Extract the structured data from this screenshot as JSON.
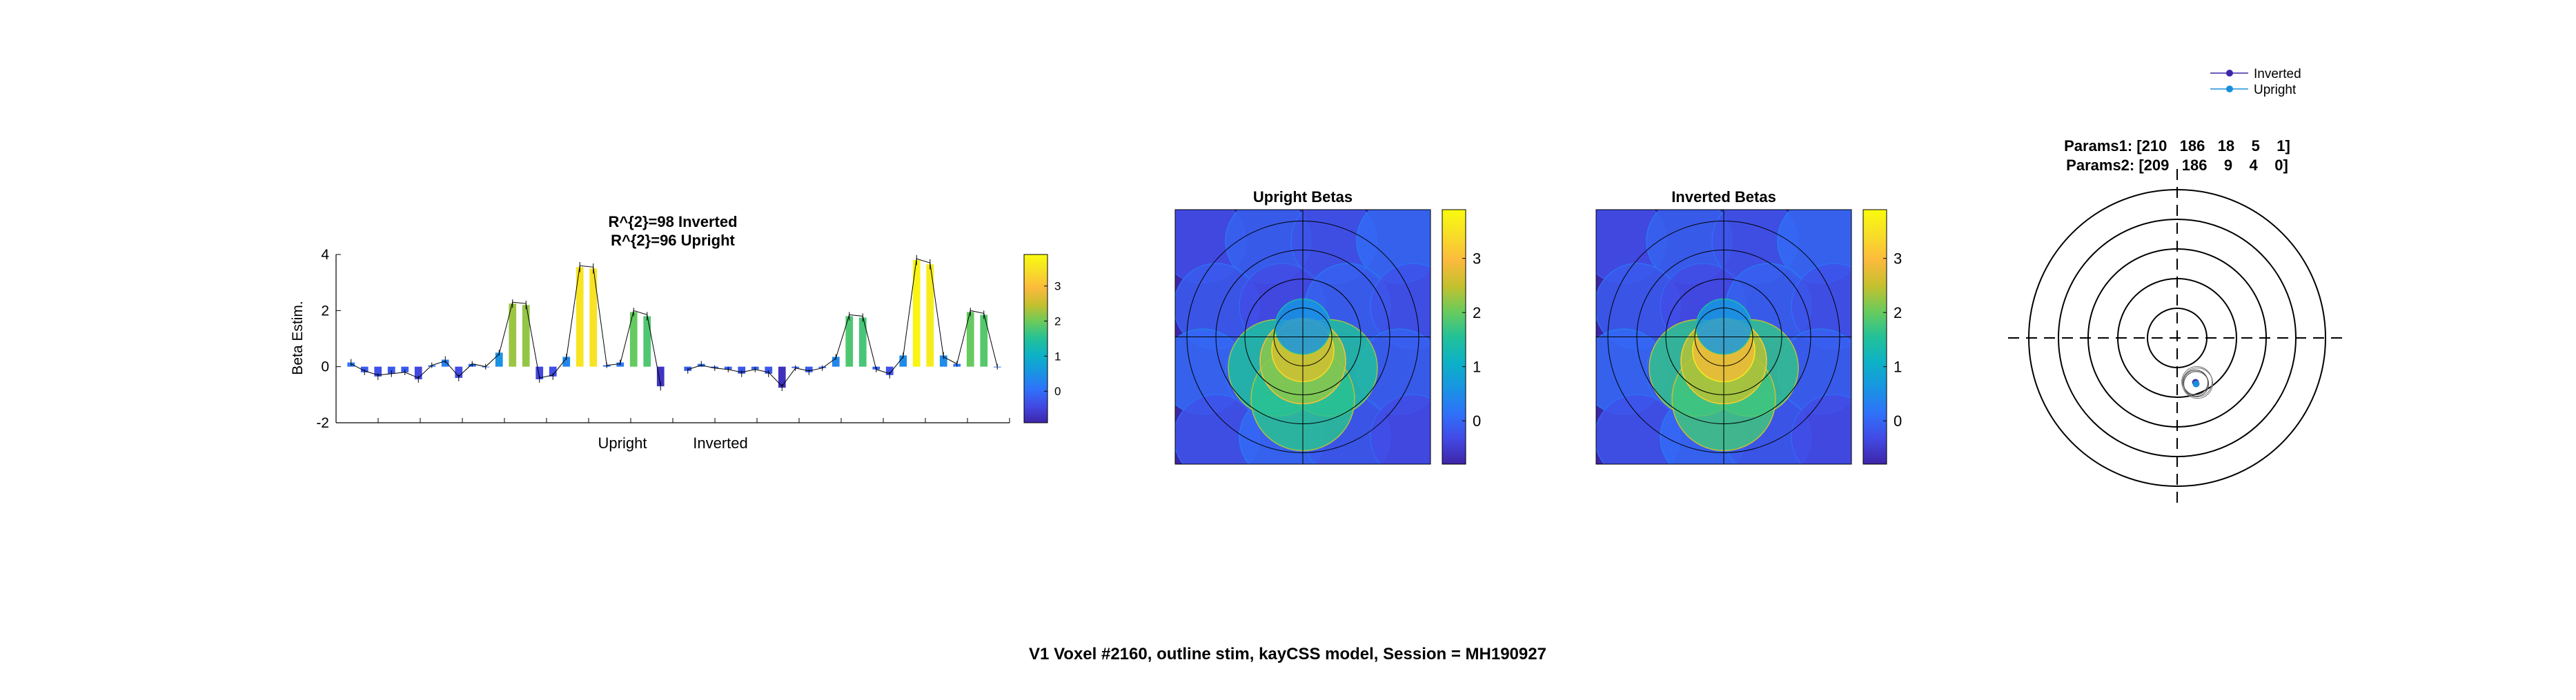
{
  "suptitle": "V1 Voxel #2160, outline stim, kayCSS model, Session = MH190927",
  "colors": {
    "colormap": [
      "#3e26a8",
      "#4249e4",
      "#2f72f9",
      "#1895e2",
      "#0db1c6",
      "#23c198",
      "#69cb5c",
      "#c4c02e",
      "#fbba3d",
      "#f8dd28",
      "#f9fb0e"
    ],
    "black": "#000000",
    "inverted_marker": "#3e26a8",
    "upright_marker": "#1a8fd8",
    "curve_line": "#000000"
  },
  "chart_data": [
    {
      "type": "bar",
      "title_lines": [
        "R^{2}=98 Inverted",
        "R^{2}=96 Upright"
      ],
      "ylabel": "Beta Estim.",
      "xlabel": "",
      "ylim": [
        -2,
        4
      ],
      "yticks": [
        -2,
        0,
        2,
        4
      ],
      "group_labels": [
        "Upright",
        "Inverted"
      ],
      "colorbar_ticks": [
        0,
        1,
        2,
        3
      ],
      "clim": [
        -0.9,
        3.9
      ],
      "groups": [
        {
          "name": "Upright",
          "values": [
            0.15,
            -0.2,
            -0.35,
            -0.25,
            -0.2,
            -0.45,
            0.05,
            0.25,
            -0.4,
            0.1,
            0.0,
            0.5,
            2.25,
            2.2,
            -0.45,
            -0.35,
            0.35,
            3.55,
            3.5,
            0.05,
            0.15,
            1.95,
            1.8,
            -0.7
          ],
          "errors": [
            0.12,
            0.1,
            0.12,
            0.12,
            0.1,
            0.12,
            0.1,
            0.12,
            0.12,
            0.1,
            0.1,
            0.1,
            0.15,
            0.15,
            0.12,
            0.12,
            0.1,
            0.18,
            0.18,
            0.1,
            0.1,
            0.15,
            0.15,
            0.15
          ],
          "fit": [
            0.1,
            -0.15,
            -0.3,
            -0.25,
            -0.2,
            -0.4,
            0.05,
            0.2,
            -0.35,
            0.1,
            0.0,
            0.45,
            2.3,
            2.25,
            -0.4,
            -0.3,
            0.3,
            3.6,
            3.55,
            0.05,
            0.1,
            2.0,
            1.85,
            -0.65
          ]
        },
        {
          "name": "Inverted",
          "values": [
            -0.15,
            0.1,
            -0.05,
            -0.1,
            -0.25,
            -0.1,
            -0.25,
            -0.75,
            -0.05,
            -0.2,
            -0.05,
            0.35,
            1.8,
            1.75,
            -0.1,
            -0.3,
            0.4,
            3.8,
            3.65,
            0.4,
            0.1,
            1.95,
            1.85,
            0.0
          ],
          "errors": [
            0.1,
            0.1,
            0.1,
            0.1,
            0.12,
            0.1,
            0.12,
            0.12,
            0.1,
            0.1,
            0.1,
            0.1,
            0.15,
            0.15,
            0.1,
            0.12,
            0.1,
            0.18,
            0.18,
            0.12,
            0.1,
            0.15,
            0.15,
            0.1
          ],
          "fit": [
            -0.1,
            0.05,
            -0.05,
            -0.1,
            -0.2,
            -0.1,
            -0.2,
            -0.7,
            -0.05,
            -0.15,
            -0.05,
            0.3,
            1.85,
            1.8,
            -0.1,
            -0.25,
            0.35,
            3.85,
            3.7,
            0.35,
            0.1,
            2.0,
            1.9,
            0.0
          ]
        }
      ]
    },
    {
      "type": "heatmap",
      "title": "Upright Betas",
      "colorbar_ticks": [
        0,
        1,
        2,
        3
      ],
      "clim": [
        -0.8,
        3.9
      ],
      "grid_rings": [
        1,
        2,
        3,
        4
      ],
      "note": "overlapping circular stimulus apertures colored by beta"
    },
    {
      "type": "heatmap",
      "title": "Inverted Betas",
      "colorbar_ticks": [
        0,
        1,
        2,
        3
      ],
      "clim": [
        -0.8,
        3.9
      ],
      "grid_rings": [
        1,
        2,
        3,
        4
      ],
      "note": "overlapping circular stimulus apertures colored by beta"
    },
    {
      "type": "scatter",
      "params_lines": [
        "Params1: [210   186   18    5    1]",
        "Params2: [209   186    9    4    0]"
      ],
      "legend": [
        "Inverted",
        "Upright"
      ],
      "legend_position": "top-right",
      "rings": [
        1,
        2,
        3,
        4,
        5
      ],
      "points": [
        {
          "series": "Inverted",
          "x": 0.62,
          "y": -1.5
        },
        {
          "series": "Upright",
          "x": 0.64,
          "y": -1.55
        }
      ]
    }
  ]
}
